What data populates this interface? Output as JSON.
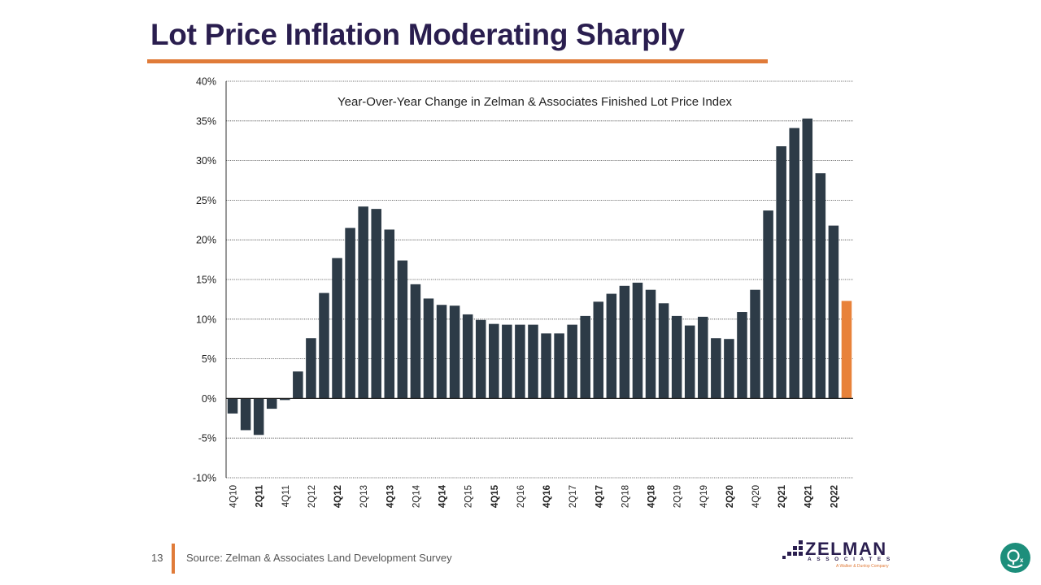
{
  "slide": {
    "title": "Lot Price Inflation Moderating Sharply",
    "page_number": "13",
    "source": "Source: Zelman & Associates Land Development Survey",
    "logo": {
      "word": "ZELMAN",
      "sub": "ASSOCIATES",
      "tagline": "A Walker & Dunlop Company"
    },
    "accent_color": "#e07b39",
    "title_color": "#2a1e4f",
    "bar_color": "#2d3b47",
    "highlight_color": "#e8823a"
  },
  "chart_data": {
    "type": "bar",
    "title": "Year-Over-Year Change in Zelman & Associates Finished Lot Price Index",
    "xlabel": "",
    "ylabel": "",
    "ylim": [
      -10,
      40
    ],
    "yticks": [
      40,
      35,
      30,
      25,
      20,
      15,
      10,
      5,
      0,
      -5,
      -10
    ],
    "ytick_labels": [
      "40%",
      "35%",
      "30%",
      "25%",
      "20%",
      "15%",
      "10%",
      "5%",
      "0%",
      "-5%",
      "-10%"
    ],
    "grid": true,
    "categories": [
      "4Q10",
      "1Q11",
      "2Q11",
      "3Q11",
      "4Q11",
      "1Q12",
      "2Q12",
      "3Q12",
      "4Q12",
      "1Q13",
      "2Q13",
      "3Q13",
      "4Q13",
      "1Q14",
      "2Q14",
      "3Q14",
      "4Q14",
      "1Q15",
      "2Q15",
      "3Q15",
      "4Q15",
      "1Q16",
      "2Q16",
      "3Q16",
      "4Q16",
      "1Q17",
      "2Q17",
      "3Q17",
      "4Q17",
      "1Q18",
      "2Q18",
      "3Q18",
      "4Q18",
      "1Q19",
      "2Q19",
      "3Q19",
      "4Q19",
      "1Q20",
      "2Q20",
      "3Q20",
      "4Q20",
      "1Q21",
      "2Q21",
      "3Q21",
      "4Q21",
      "1Q22",
      "2Q22",
      "3Q22"
    ],
    "tick_labels": [
      "4Q10",
      "",
      "2Q11",
      "",
      "4Q11",
      "",
      "2Q12",
      "",
      "4Q12",
      "",
      "2Q13",
      "",
      "4Q13",
      "",
      "2Q14",
      "",
      "4Q14",
      "",
      "2Q15",
      "",
      "4Q15",
      "",
      "2Q16",
      "",
      "4Q16",
      "",
      "2Q17",
      "",
      "4Q17",
      "",
      "2Q18",
      "",
      "4Q18",
      "",
      "2Q19",
      "",
      "4Q19",
      "",
      "2Q20",
      "",
      "4Q20",
      "",
      "2Q21",
      "",
      "4Q21",
      "",
      "2Q22",
      ""
    ],
    "bold_ticks": [
      "2Q11",
      "4Q12",
      "4Q13",
      "4Q14",
      "4Q15",
      "4Q16",
      "4Q17",
      "4Q18",
      "2Q20",
      "2Q21",
      "4Q21",
      "2Q22"
    ],
    "values": [
      -1.9,
      -4.0,
      -4.6,
      -1.3,
      -0.2,
      3.4,
      7.6,
      13.3,
      17.7,
      21.5,
      24.2,
      23.9,
      21.3,
      17.4,
      14.4,
      12.6,
      11.8,
      11.7,
      10.6,
      9.9,
      9.4,
      9.3,
      9.3,
      9.3,
      8.2,
      8.2,
      9.3,
      10.4,
      12.2,
      13.2,
      14.2,
      14.6,
      13.7,
      12.0,
      10.4,
      9.2,
      10.3,
      7.6,
      7.5,
      10.9,
      13.7,
      23.7,
      31.8,
      34.1,
      35.3,
      28.4,
      21.8,
      12.3
    ],
    "highlight_index": 47
  }
}
